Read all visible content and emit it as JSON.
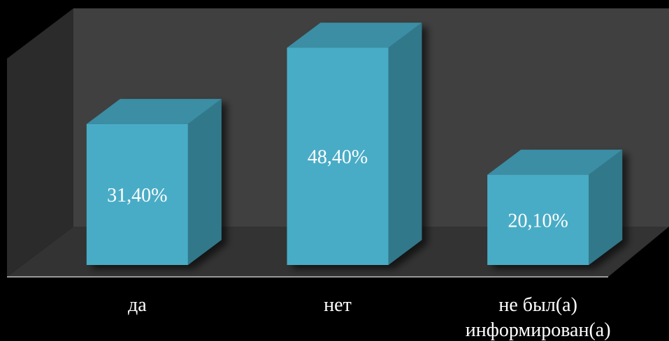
{
  "chart_data": {
    "type": "bar",
    "style": "3d-column",
    "categories": [
      [
        "да"
      ],
      [
        "нет"
      ],
      [
        "не был(а)",
        "информирован(а)"
      ]
    ],
    "values": [
      31.4,
      48.4,
      20.1
    ],
    "data_labels": [
      "31,40%",
      "48,40%",
      "20,10%"
    ],
    "ylim": [
      0,
      55
    ],
    "grid": false,
    "legend": "none",
    "colors": {
      "background": "#000000",
      "back_wall": "#404040",
      "side_wall": "#2b2b2b",
      "floor": "#333333",
      "bar_front": "#4aacc6",
      "bar_top": "#3a8ea4",
      "bar_side": "#31788b"
    }
  }
}
